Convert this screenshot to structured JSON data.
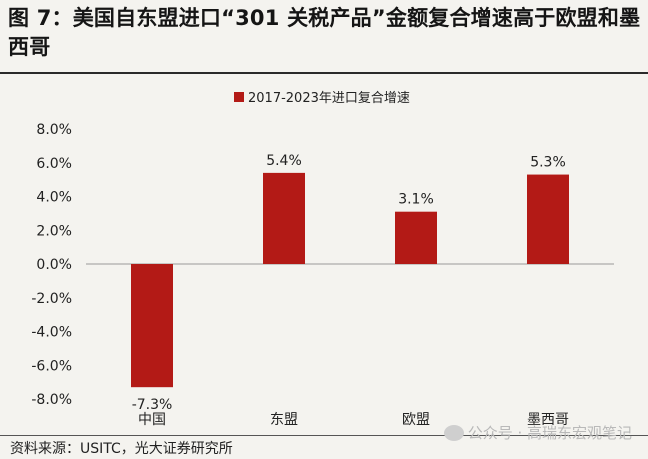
{
  "page": {
    "title": "图 7：美国自东盟进口“301 关税产品”金额复合增速高于欧盟和墨西哥",
    "source": "资料来源：USITC，光大证券研究所",
    "watermark": "公众号 · 高瑞东宏观笔记"
  },
  "chart_data": {
    "type": "bar",
    "categories": [
      "中国",
      "东盟",
      "欧盟",
      "墨西哥"
    ],
    "series": [
      {
        "name": "2017-2023年进口复合增速",
        "values": [
          -7.3,
          5.4,
          3.1,
          5.3
        ],
        "labels": [
          "-7.3%",
          "5.4%",
          "3.1%",
          "5.3%"
        ],
        "color": "#b31a16"
      }
    ],
    "yticks": [
      "8.0%",
      "6.0%",
      "4.0%",
      "2.0%",
      "0.0%",
      "-2.0%",
      "-4.0%",
      "-6.0%",
      "-8.0%"
    ],
    "ylim": [
      -8,
      8
    ],
    "ylabel": "",
    "xlabel": "",
    "legend_position": "top-center",
    "grid": false
  }
}
